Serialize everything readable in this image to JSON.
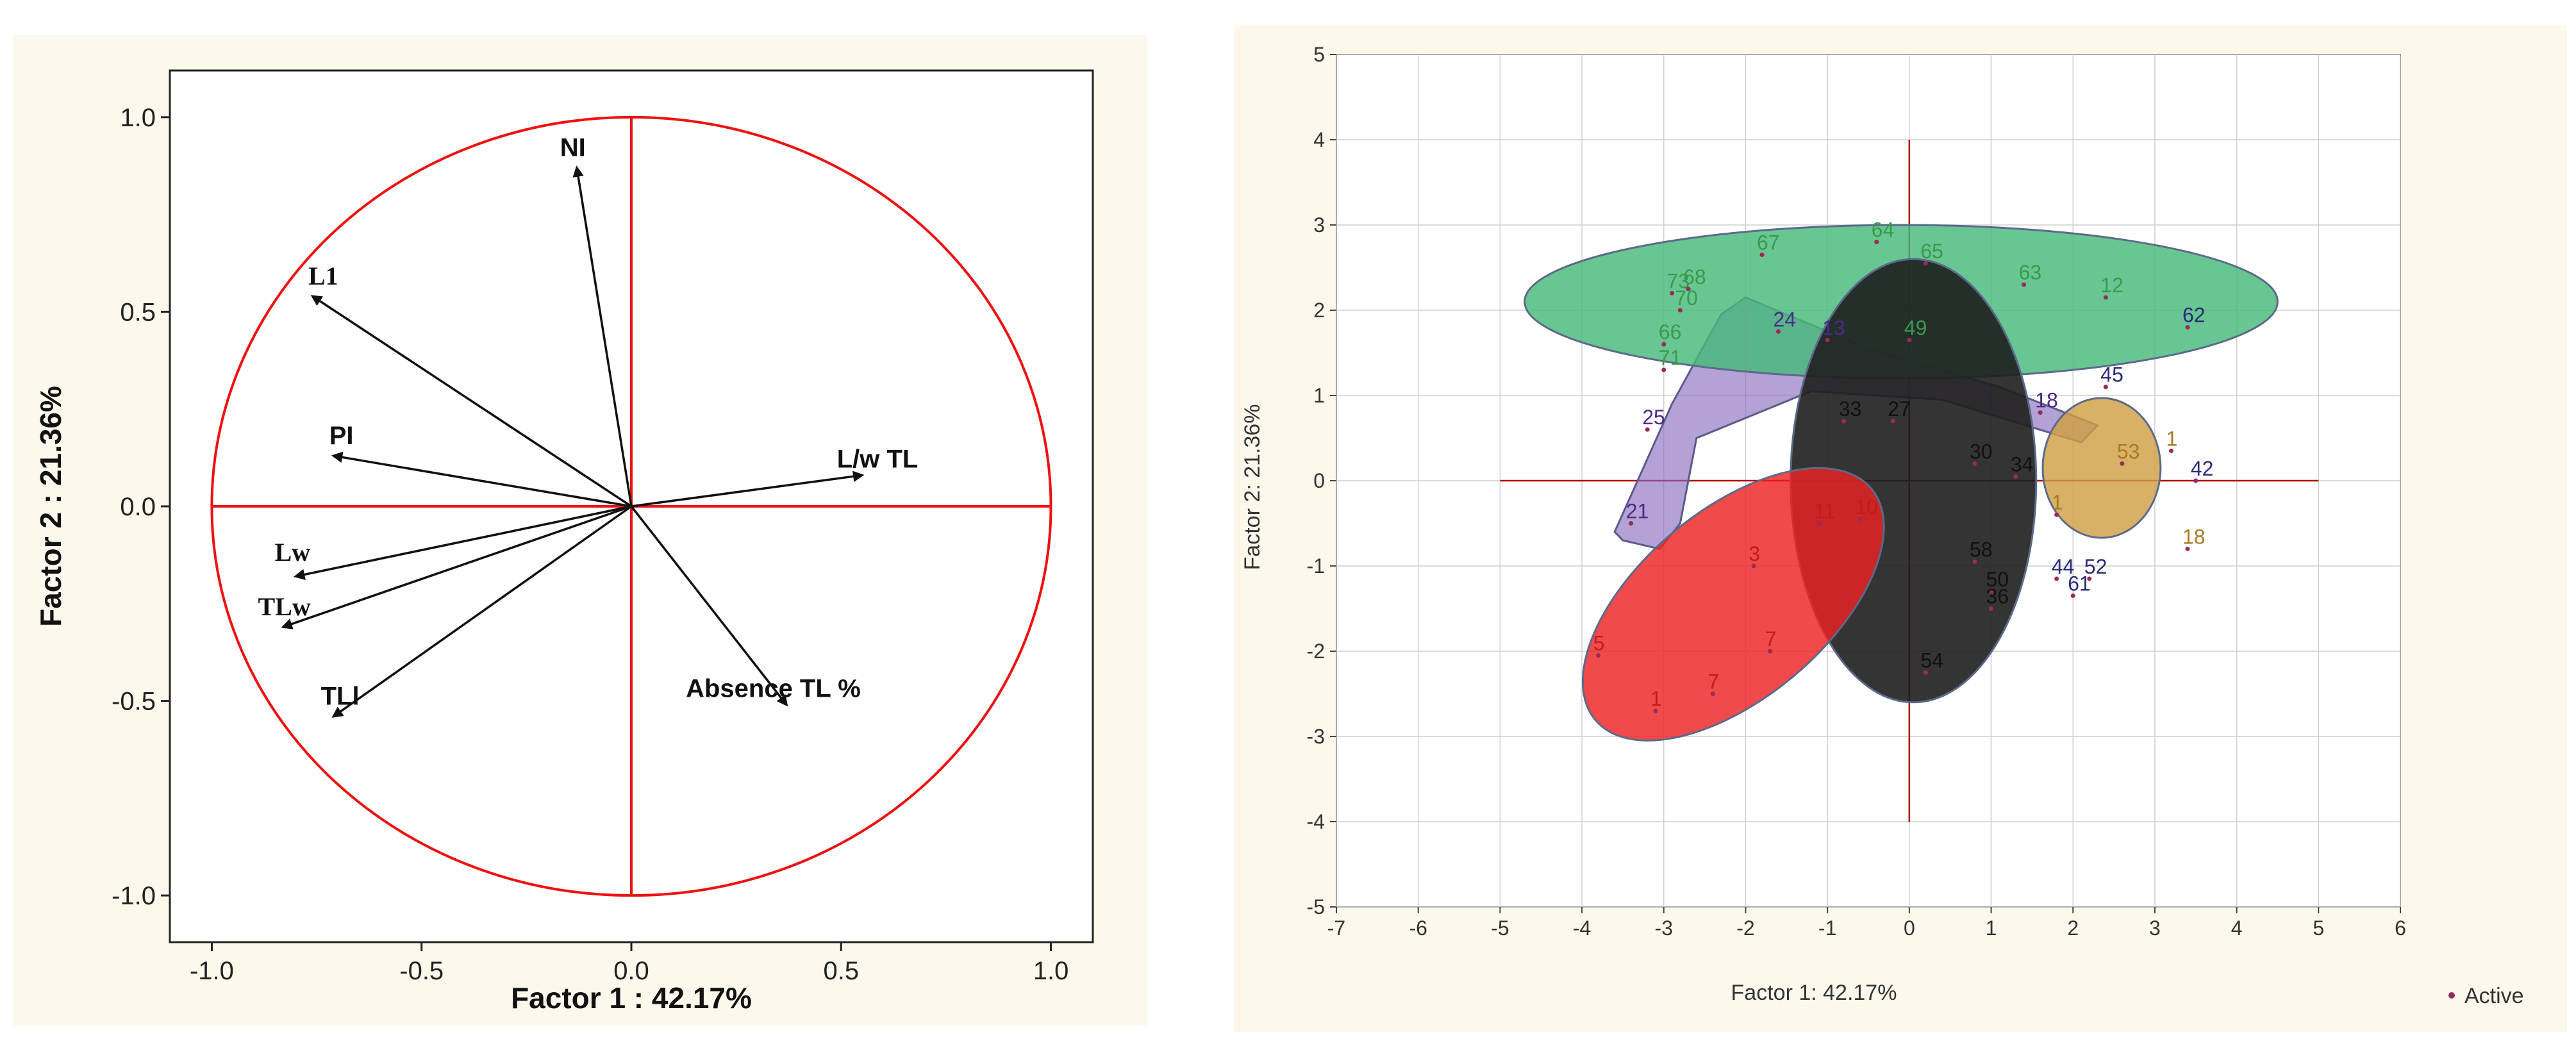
{
  "colors": {
    "left_bg": "#fdf8ec",
    "right_bg": "#fdf8ec",
    "circle": "#ee1111",
    "axis_red": "#ee1111",
    "vector": "#111111",
    "grid": "#cfcfcf",
    "crosshair": "#b0000e",
    "active_marker": "#9a2a5a"
  },
  "left_chart": {
    "xlabel": "Factor 1 : 42.17%",
    "ylabel": "Factor 2 : 21.36%",
    "x_ticks": [
      "-1.0",
      "-0.5",
      "0.0",
      "0.5",
      "1.0"
    ],
    "y_ticks": [
      "1.0",
      "0.5",
      "0.0",
      "-0.5",
      "-1.0"
    ]
  },
  "right_chart": {
    "xlabel": "Factor 1: 42.17%",
    "ylabel": "Factor 2: 21.36%",
    "x_ticks": [
      "-7",
      "-6",
      "-5",
      "-4",
      "-3",
      "-2",
      "-1",
      "0",
      "1",
      "2",
      "3",
      "4",
      "5",
      "6"
    ],
    "y_ticks": [
      "5",
      "4",
      "3",
      "2",
      "1",
      "0",
      "-1",
      "-2",
      "-3",
      "-4",
      "-5"
    ],
    "legend_label": "Active"
  },
  "chart_data": [
    {
      "type": "scatter",
      "subtype": "correlation-circle",
      "xlabel": "Factor 1 : 42.17%",
      "ylabel": "Factor 2 : 21.36%",
      "xlim": [
        -1.1,
        1.1
      ],
      "ylim": [
        -1.12,
        1.12
      ],
      "unit_circle": true,
      "vectors": [
        {
          "label": "NI",
          "x": -0.13,
          "y": 0.87,
          "lx": -0.17,
          "ly": 0.9
        },
        {
          "label": "L1",
          "x": -0.76,
          "y": 0.54,
          "lx": -0.77,
          "ly": 0.57
        },
        {
          "label": "PI",
          "x": -0.71,
          "y": 0.13,
          "lx": -0.72,
          "ly": 0.16
        },
        {
          "label": "L/w TL",
          "x": 0.55,
          "y": 0.08,
          "lx": 0.49,
          "ly": 0.1
        },
        {
          "label": "Lw",
          "x": -0.8,
          "y": -0.18,
          "lx": -0.85,
          "ly": -0.14
        },
        {
          "label": "TLw",
          "x": -0.83,
          "y": -0.31,
          "lx": -0.89,
          "ly": -0.28
        },
        {
          "label": "TLl",
          "x": -0.71,
          "y": -0.54,
          "lx": -0.74,
          "ly": -0.51
        },
        {
          "label": "Absence TL %",
          "x": 0.37,
          "y": -0.51,
          "lx": 0.13,
          "ly": -0.49
        }
      ]
    },
    {
      "type": "scatter",
      "xlabel": "Factor 1: 42.17%",
      "ylabel": "Factor 2: 21.36%",
      "xlim": [
        -7,
        6
      ],
      "ylim": [
        -5,
        5
      ],
      "grid": true,
      "legend": {
        "position": "bottom-right",
        "entries": [
          "Active"
        ]
      },
      "groups": [
        {
          "color": "#3a9a4c",
          "fill": "#47b97a",
          "ellipse": {
            "cx": -0.1,
            "cy": 2.1,
            "rx": 4.6,
            "ry": 0.9,
            "angle": 0
          },
          "points": [
            {
              "label": "64",
              "x": -0.4,
              "y": 2.8
            },
            {
              "label": "67",
              "x": -1.8,
              "y": 2.65
            },
            {
              "label": "65",
              "x": 0.2,
              "y": 2.55
            },
            {
              "label": "63",
              "x": 1.4,
              "y": 2.3
            },
            {
              "label": "12",
              "x": 2.4,
              "y": 2.15
            },
            {
              "label": "73",
              "x": -2.9,
              "y": 2.2
            },
            {
              "label": "68",
              "x": -2.7,
              "y": 2.25
            },
            {
              "label": "70",
              "x": -2.8,
              "y": 2.0
            },
            {
              "label": "66",
              "x": -3.0,
              "y": 1.6
            },
            {
              "label": "71",
              "x": -3.0,
              "y": 1.3
            },
            {
              "label": "49",
              "x": 0.0,
              "y": 1.65
            }
          ]
        },
        {
          "color": "#4a2a8a",
          "fill": "#8c6fc0",
          "ellipse": null,
          "points": [
            {
              "label": "24",
              "x": -1.6,
              "y": 1.75
            },
            {
              "label": "13",
              "x": -1.0,
              "y": 1.65
            },
            {
              "label": "25",
              "x": -3.2,
              "y": 0.6
            },
            {
              "label": "21",
              "x": -3.4,
              "y": -0.5
            },
            {
              "label": "18",
              "x": 1.6,
              "y": 0.8
            }
          ]
        },
        {
          "color": "#111111",
          "fill": "#1e1e1e",
          "ellipse": {
            "cx": 0.05,
            "cy": 0.0,
            "rx": 1.5,
            "ry": 2.6,
            "angle": 0
          },
          "points": [
            {
              "label": "33",
              "x": -0.8,
              "y": 0.7
            },
            {
              "label": "27",
              "x": -0.2,
              "y": 0.7
            },
            {
              "label": "30",
              "x": 0.8,
              "y": 0.2
            },
            {
              "label": "34",
              "x": 1.3,
              "y": 0.05
            },
            {
              "label": "58",
              "x": 0.8,
              "y": -0.95
            },
            {
              "label": "50",
              "x": 1.0,
              "y": -1.3
            },
            {
              "label": "36",
              "x": 1.0,
              "y": -1.5
            },
            {
              "label": "54",
              "x": 0.2,
              "y": -2.25
            }
          ]
        },
        {
          "color": "#c21b1b",
          "fill": "#ee2222",
          "ellipse": {
            "cx": -2.15,
            "cy": -1.45,
            "rx": 2.2,
            "ry": 1.1,
            "angle": -40
          },
          "points": [
            {
              "label": "5",
              "x": -3.8,
              "y": -2.05
            },
            {
              "label": "1",
              "x": -3.1,
              "y": -2.7
            },
            {
              "label": "7",
              "x": -2.4,
              "y": -2.5
            },
            {
              "label": "7",
              "x": -1.7,
              "y": -2.0
            },
            {
              "label": "3",
              "x": -1.9,
              "y": -1.0
            },
            {
              "label": "11",
              "x": -1.1,
              "y": -0.5
            },
            {
              "label": "10",
              "x": -0.6,
              "y": -0.45
            }
          ]
        },
        {
          "color": "#a87a20",
          "fill": "#cfa044",
          "ellipse": {
            "cx": 2.35,
            "cy": 0.15,
            "rx": 0.72,
            "ry": 0.82,
            "angle": 0
          },
          "points": [
            {
              "label": "1",
              "x": 3.2,
              "y": 0.35
            },
            {
              "label": "53",
              "x": 2.6,
              "y": 0.2
            },
            {
              "label": "1",
              "x": 1.8,
              "y": -0.4
            },
            {
              "label": "18",
              "x": 3.4,
              "y": -0.8
            }
          ]
        },
        {
          "color": "#2a2a7a",
          "fill": "#2a2a7a",
          "ellipse": null,
          "points": [
            {
              "label": "45",
              "x": 2.4,
              "y": 1.1
            },
            {
              "label": "62",
              "x": 3.4,
              "y": 1.8
            },
            {
              "label": "42",
              "x": 3.5,
              "y": 0.0
            },
            {
              "label": "44",
              "x": 1.8,
              "y": -1.15
            },
            {
              "label": "52",
              "x": 2.2,
              "y": -1.15
            },
            {
              "label": "61",
              "x": 2.0,
              "y": -1.35
            }
          ]
        }
      ]
    }
  ]
}
